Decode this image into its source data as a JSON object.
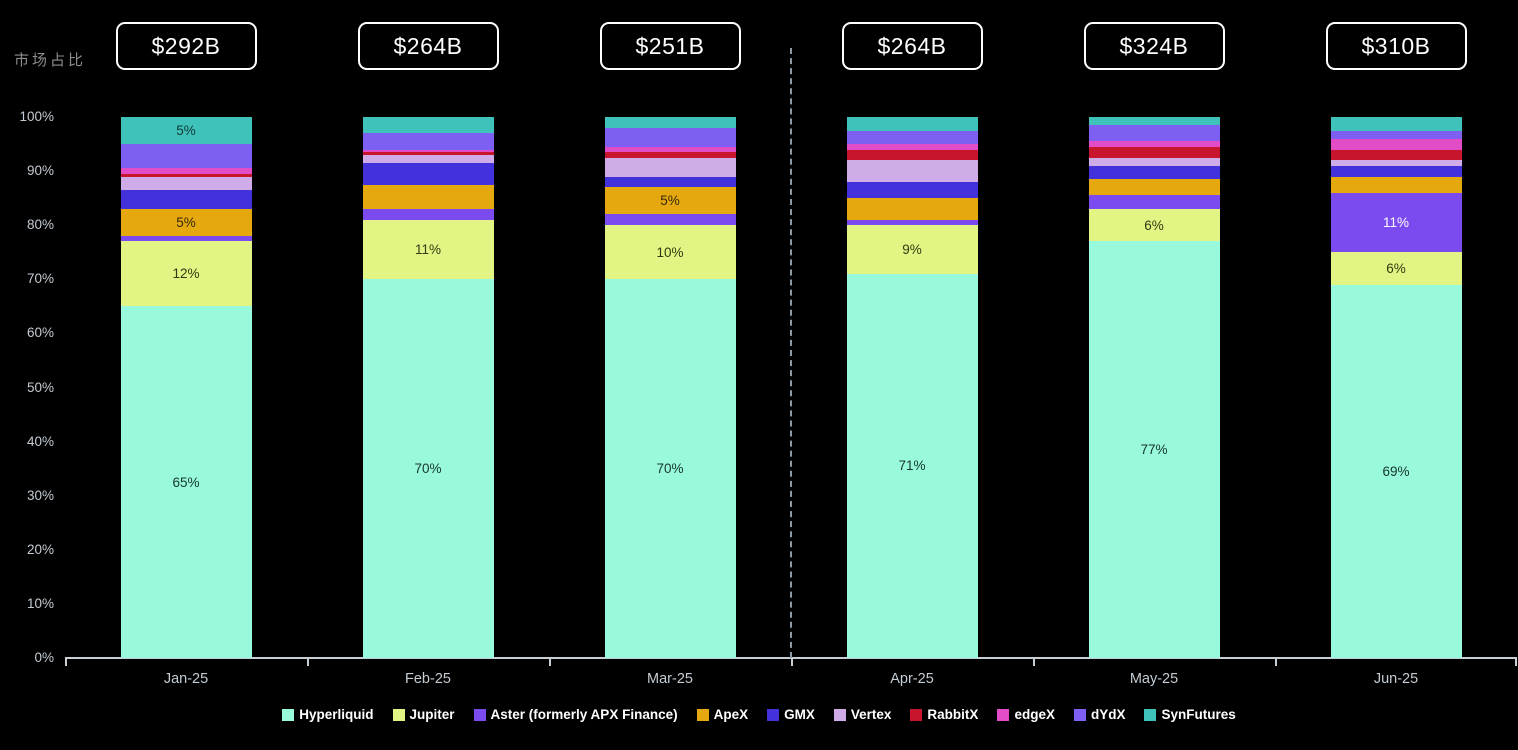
{
  "chart_data": {
    "type": "bar",
    "stacked": true,
    "normalized_percent": true,
    "title": "",
    "ylabel": "市场占比",
    "ylim": [
      0,
      100
    ],
    "ytick_step": 10,
    "ytick_suffix": "%",
    "grid": false,
    "legend_position": "bottom",
    "categories": [
      "Jan-25",
      "Feb-25",
      "Mar-25",
      "Apr-25",
      "May-25",
      "Jun-25"
    ],
    "totals": [
      "$292B",
      "$264B",
      "$251B",
      "$264B",
      "$324B",
      "$310B"
    ],
    "separator_after_category_index": 2,
    "segment_label_threshold_pct": 5,
    "series": [
      {
        "name": "Hyperliquid",
        "color": "#98F9DC",
        "label_color": "#16342e",
        "values": [
          65,
          70,
          70,
          71,
          77,
          69
        ]
      },
      {
        "name": "Jupiter",
        "color": "#E2F584",
        "label_color": "#2e3a10",
        "values": [
          12,
          11,
          10,
          9,
          6,
          6
        ]
      },
      {
        "name": "Aster (formerly APX Finance)",
        "color": "#7B4BF0",
        "label_color": "#ffffff",
        "values": [
          1,
          2,
          2,
          1,
          2.5,
          11
        ]
      },
      {
        "name": "ApeX",
        "color": "#E5A90F",
        "label_color": "#35290a",
        "values": [
          5,
          4.5,
          5,
          4,
          3,
          3
        ]
      },
      {
        "name": "GMX",
        "color": "#4331DB",
        "label_color": "#ffffff",
        "values": [
          3.5,
          4,
          2,
          3,
          2.5,
          2
        ]
      },
      {
        "name": "Vertex",
        "color": "#CFABE8",
        "label_color": "#2d1d3a",
        "values": [
          2.5,
          1.5,
          3.5,
          4,
          1.5,
          1
        ]
      },
      {
        "name": "RabbitX",
        "color": "#C7152E",
        "label_color": "#ffffff",
        "values": [
          0.5,
          0.5,
          1,
          2,
          2,
          2
        ]
      },
      {
        "name": "edgeX",
        "color": "#E24CC6",
        "label_color": "#ffffff",
        "values": [
          1,
          0.5,
          1,
          1,
          1,
          2
        ]
      },
      {
        "name": "dYdX",
        "color": "#7D60F2",
        "label_color": "#ffffff",
        "values": [
          4.5,
          3,
          3.5,
          2.5,
          3,
          1.5
        ]
      },
      {
        "name": "SynFutures",
        "color": "#3EC2B9",
        "label_color": "#113a36",
        "values": [
          5,
          3,
          2,
          2.5,
          1.5,
          2.5
        ]
      }
    ]
  }
}
